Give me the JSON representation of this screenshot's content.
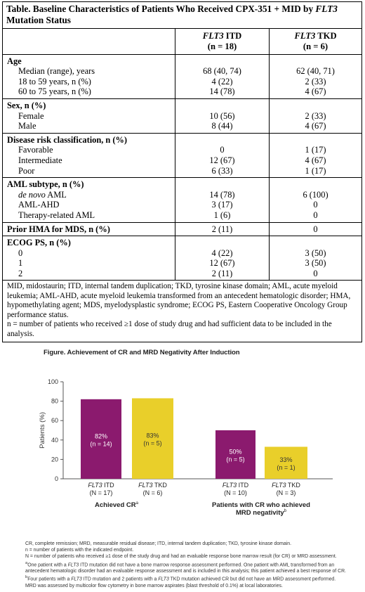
{
  "table": {
    "title_prefix": "Table. Baseline Characteristics of Patients Who Received CPX-351 + MID by ",
    "title_gene": "FLT3",
    "title_suffix": " Mutation Status",
    "columns": [
      {
        "gene": "FLT3",
        "label": " ITD",
        "n": "(n = 18)"
      },
      {
        "gene": "FLT3",
        "label": " TKD",
        "n": "(n = 6)"
      }
    ],
    "groups": [
      {
        "heading": "Age",
        "rows": [
          {
            "label": "Median (range), years",
            "itd": "68 (40, 74)",
            "tkd": "62 (40, 71)"
          },
          {
            "label": "18 to 59 years, n (%)",
            "itd": "4 (22)",
            "tkd": "2 (33)"
          },
          {
            "label": "60 to 75 years, n (%)",
            "itd": "14 (78)",
            "tkd": "4 (67)"
          }
        ]
      },
      {
        "heading": "Sex, n (%)",
        "rows": [
          {
            "label": "Female",
            "itd": "10 (56)",
            "tkd": "2 (33)"
          },
          {
            "label": "Male",
            "itd": "8 (44)",
            "tkd": "4 (67)"
          }
        ]
      },
      {
        "heading": "Disease risk classification, n (%)",
        "rows": [
          {
            "label": "Favorable",
            "itd": "0",
            "tkd": "1 (17)"
          },
          {
            "label": "Intermediate",
            "itd": "12 (67)",
            "tkd": "4 (67)"
          },
          {
            "label": "Poor",
            "itd": "6 (33)",
            "tkd": "1 (17)"
          }
        ]
      },
      {
        "heading": "AML subtype, n (%)",
        "rows": [
          {
            "label_italic": "de novo",
            "label": " AML",
            "itd": "14 (78)",
            "tkd": "6 (100)"
          },
          {
            "label": "AML-AHD",
            "itd": "3 (17)",
            "tkd": "0"
          },
          {
            "label": "Therapy-related AML",
            "itd": "1 (6)",
            "tkd": "0"
          }
        ]
      },
      {
        "heading": "Prior HMA for MDS, n (%)",
        "heading_itd": "2 (11)",
        "heading_tkd": "0",
        "rows": []
      },
      {
        "heading": "ECOG PS, n (%)",
        "rows": [
          {
            "label": "0",
            "itd": "4 (22)",
            "tkd": "3 (50)"
          },
          {
            "label": "1",
            "itd": "12 (67)",
            "tkd": "3 (50)"
          },
          {
            "label": "2",
            "itd": "2 (11)",
            "tkd": "0"
          }
        ]
      }
    ],
    "footnote_1": "MID, midostaurin; ITD, internal tandem duplication; TKD, tyrosine kinase domain; AML, acute myeloid leukemia; AML-AHD, acute myeloid leukemia transformed from an antecedent hematologic disorder; HMA, hypomethylating agent; MDS, myelodysplastic syndrome; ECOG PS, Eastern Cooperative Oncology Group performance status.",
    "footnote_2": "n = number of patients who received ≥1 dose of study drug and had sufficient data to be included in the analysis."
  },
  "figure": {
    "title": "Figure. Achievement of CR and MRD Negativity After Induction",
    "colors": {
      "itd": "#8b1a6e",
      "tkd": "#e9cf2a",
      "axis": "#555555"
    },
    "chart_data": {
      "type": "bar",
      "ylabel": "Patients (%)",
      "ylim": [
        0,
        100
      ],
      "yticks": [
        "0",
        "20",
        "40",
        "60",
        "80",
        "100"
      ],
      "grid": false,
      "groups": [
        {
          "label": "Achieved CR",
          "label_sup": "a",
          "bars": [
            {
              "series": "ITD",
              "value": 82,
              "value_label": "82%",
              "n_label": "(n = 14)",
              "cat_gene": "FLT3",
              "cat_label": " ITD",
              "cat_n": "(N = 17)"
            },
            {
              "series": "TKD",
              "value": 83,
              "value_label": "83%",
              "n_label": "(n = 5)",
              "cat_gene": "FLT3",
              "cat_label": " TKD",
              "cat_n": "(N = 6)"
            }
          ]
        },
        {
          "label": "Patients with CR who achieved",
          "label_line2": "MRD negativity",
          "label_sup": "b",
          "bars": [
            {
              "series": "ITD",
              "value": 50,
              "value_label": "50%",
              "n_label": "(n = 5)",
              "cat_gene": "FLT3",
              "cat_label": " ITD",
              "cat_n": "(N = 10)"
            },
            {
              "series": "TKD",
              "value": 33,
              "value_label": "33%",
              "n_label": "(n = 1)",
              "cat_gene": "FLT3",
              "cat_label": " TKD",
              "cat_n": "(N = 3)"
            }
          ]
        }
      ]
    },
    "notes": {
      "n1": "CR, complete remission; MRD, measurable residual disease; ITD, internal tandem duplication; TKD, tyrosine kinase domain.",
      "n2": "n = number of patients with the indicated endpoint.",
      "n3": "N = number of patients who received ≥1 dose of the study drug and had an evaluable response bone marrow result (for CR) or MRD assessment.",
      "n4_sup": "a",
      "n4_a": "One patient with a ",
      "n4_gene": "FLT3",
      "n4_b": " ITD mutation did not have a bone marrow response assessment performed. One patient with AML transformed from an antecedent hematologic disorder had an evaluable response assessment and is included in this analysis; this patient achieved a best response of CR.",
      "n5_sup": "b",
      "n5_a": "Four patients with a ",
      "n5_gene1": "FLT3",
      "n5_b": " ITD mutation and 2 patients with a ",
      "n5_gene2": "FLT3",
      "n5_c": " TKD mutation achieved CR but did not have an MRD assessment performed.",
      "n5_d": "MRD was assessed by multicolor flow cytometry in bone marrow aspirates (blast threshold of 0.1%) at local laboratories."
    }
  }
}
